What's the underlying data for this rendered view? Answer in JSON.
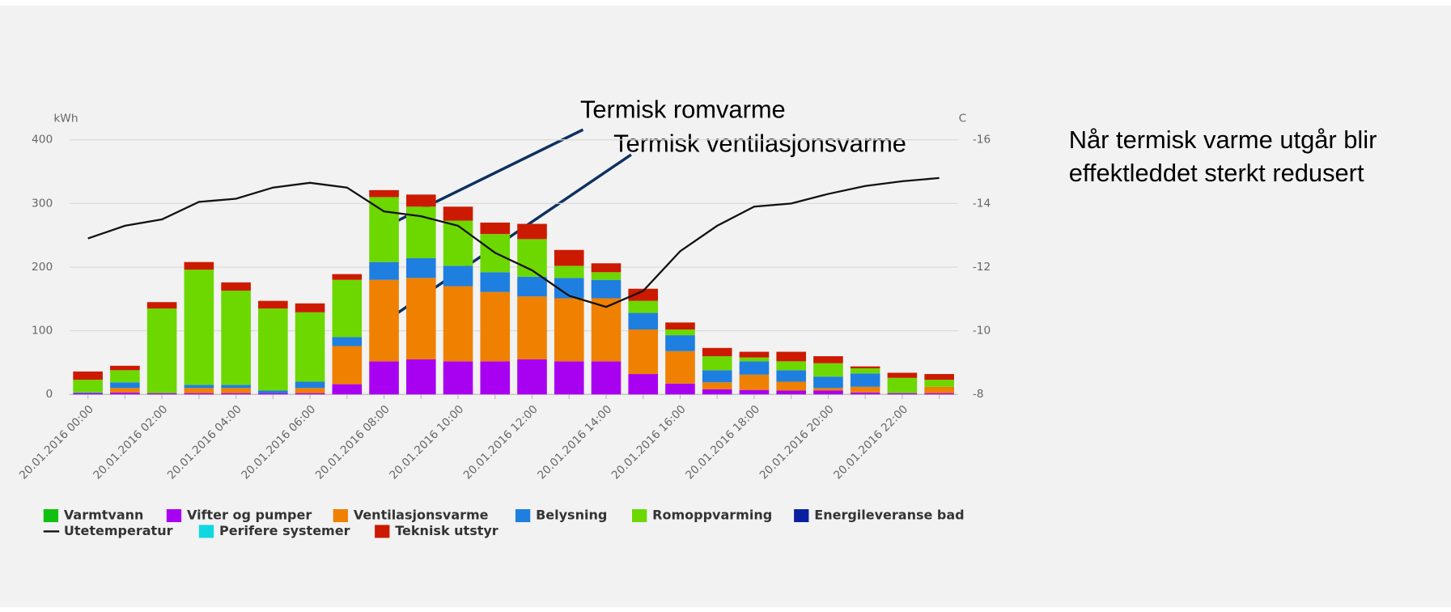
{
  "chart_data": {
    "type": "bar",
    "y_label": "kWh",
    "y2_label": "C",
    "categories": [
      "20.01.2016 00:00",
      null,
      "20.01.2016 02:00",
      null,
      "20.01.2016 04:00",
      null,
      "20.01.2016 06:00",
      null,
      "20.01.2016 08:00",
      null,
      "20.01.2016 10:00",
      null,
      "20.01.2016 12:00",
      null,
      "20.01.2016 14:00",
      null,
      "20.01.2016 16:00",
      null,
      "20.01.2016 18:00",
      null,
      "20.01.2016 20:00",
      null,
      "20.01.2016 22:00",
      null
    ],
    "series": [
      {
        "name": "Varmtvann",
        "color": "#10c010",
        "values": [
          0,
          0,
          0,
          0,
          0,
          0,
          0,
          0,
          0,
          0,
          0,
          0,
          0,
          0,
          0,
          0,
          0,
          0,
          0,
          0,
          0,
          0,
          0,
          0
        ]
      },
      {
        "name": "Vifter og pumper",
        "color": "#a800f0",
        "values": [
          2,
          3,
          2,
          2,
          2,
          2,
          2,
          16,
          52,
          55,
          52,
          52,
          55,
          52,
          52,
          32,
          17,
          8,
          7,
          6,
          6,
          3,
          2,
          2
        ]
      },
      {
        "name": "Ventilasjonsvarme",
        "color": "#f08000",
        "values": [
          0,
          7,
          0,
          8,
          8,
          0,
          8,
          60,
          128,
          128,
          118,
          109,
          99,
          99,
          99,
          70,
          51,
          11,
          24,
          14,
          4,
          9,
          0,
          10
        ]
      },
      {
        "name": "Belysning",
        "color": "#1e7fe0",
        "values": [
          1,
          9,
          0,
          5,
          5,
          4,
          10,
          14,
          28,
          31,
          32,
          31,
          31,
          32,
          29,
          26,
          25,
          19,
          21,
          18,
          18,
          21,
          0,
          0
        ]
      },
      {
        "name": "Romoppvarming",
        "color": "#6cd800",
        "values": [
          20,
          19,
          133,
          181,
          148,
          129,
          109,
          90,
          102,
          81,
          71,
          60,
          59,
          19,
          12,
          19,
          9,
          22,
          6,
          14,
          21,
          8,
          24,
          11
        ]
      },
      {
        "name": "Energileveranse bad",
        "color": "#0a20a0",
        "values": [
          0,
          0,
          0,
          0,
          0,
          0,
          0,
          0,
          0,
          0,
          0,
          0,
          0,
          0,
          0,
          0,
          0,
          0,
          0,
          0,
          0,
          0,
          0,
          0
        ]
      },
      {
        "name": "Utetemperatur",
        "color": "#111111",
        "type": "line",
        "axis": "y2",
        "values": [
          -12.9,
          -13.3,
          -13.5,
          -14.05,
          -14.15,
          -14.5,
          -14.65,
          -14.5,
          -13.75,
          -13.6,
          -13.3,
          -12.45,
          -11.9,
          -11.1,
          -10.75,
          -11.25,
          -12.5,
          -13.3,
          -13.9,
          -14.0,
          -14.3,
          -14.55,
          -14.7,
          -14.8
        ]
      },
      {
        "name": "Perifere systemer",
        "color": "#10d8e0",
        "values": [
          0,
          0,
          0,
          0,
          0,
          0,
          0,
          0,
          0,
          0,
          0,
          0,
          0,
          0,
          0,
          0,
          0,
          0,
          0,
          0,
          0,
          0,
          0,
          0
        ]
      },
      {
        "name": "Teknisk utstyr",
        "color": "#cc1a00",
        "values": [
          13,
          7,
          10,
          12,
          13,
          12,
          14,
          9,
          11,
          19,
          22,
          18,
          24,
          25,
          14,
          19,
          11,
          13,
          9,
          15,
          11,
          3,
          8,
          9
        ]
      }
    ],
    "ylim": [
      0,
      400
    ],
    "yticks": [
      0,
      100,
      200,
      300,
      400
    ],
    "y2lim": [
      -8,
      -16
    ],
    "y2ticks": [
      -8,
      -10,
      -12,
      -14,
      -16
    ],
    "grid": true,
    "annotations": [
      "Termisk romvarme",
      "Termisk ventilasjonsvarme"
    ],
    "side_note": [
      "Når termisk varme utgår blir",
      "effektleddet sterkt redusert"
    ]
  }
}
